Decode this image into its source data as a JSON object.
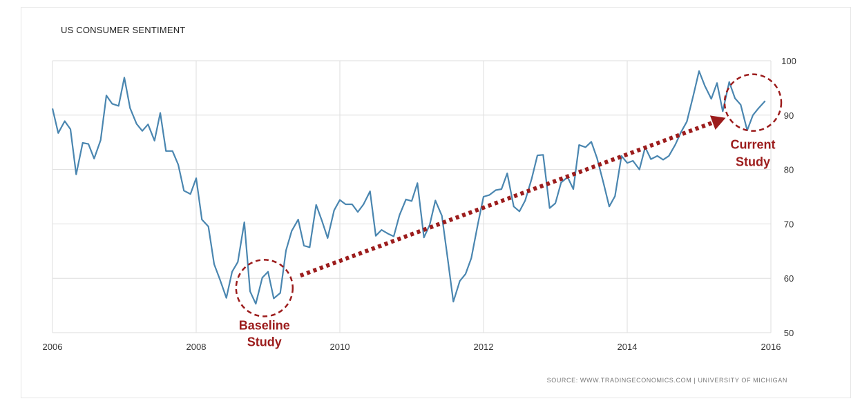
{
  "colors": {
    "line": "#4a86b0",
    "grid": "#dedede",
    "annotation": "#9c1c1c"
  },
  "chart_data": {
    "type": "line",
    "title": "US CONSUMER SENTIMENT",
    "source": "SOURCE: WWW.TRADINGECONOMICS.COM | UNIVERSITY OF MICHIGAN",
    "xlim": [
      2006,
      2016
    ],
    "ylim": [
      50,
      100
    ],
    "x_ticks": [
      2006,
      2008,
      2010,
      2012,
      2014,
      2016
    ],
    "y_ticks": [
      50,
      60,
      70,
      80,
      90,
      100
    ],
    "y_axis_side": "right",
    "grid": true,
    "series": [
      {
        "x": [
          2006.0,
          2006.08,
          2006.17,
          2006.25,
          2006.33,
          2006.42,
          2006.5,
          2006.58,
          2006.67,
          2006.75,
          2006.83,
          2006.92,
          2007.0,
          2007.08,
          2007.17,
          2007.25,
          2007.33,
          2007.42,
          2007.5,
          2007.58,
          2007.67,
          2007.75,
          2007.83,
          2007.92,
          2008.0,
          2008.08,
          2008.17,
          2008.25,
          2008.33,
          2008.42,
          2008.5,
          2008.58,
          2008.67,
          2008.75,
          2008.83,
          2008.92,
          2009.0,
          2009.08,
          2009.17,
          2009.25,
          2009.33,
          2009.42,
          2009.5,
          2009.58,
          2009.67,
          2009.75,
          2009.83,
          2009.92,
          2010.0,
          2010.08,
          2010.17,
          2010.25,
          2010.33,
          2010.42,
          2010.5,
          2010.58,
          2010.67,
          2010.75,
          2010.83,
          2010.92,
          2011.0,
          2011.08,
          2011.17,
          2011.25,
          2011.33,
          2011.42,
          2011.5,
          2011.58,
          2011.67,
          2011.75,
          2011.83,
          2011.92,
          2012.0,
          2012.08,
          2012.17,
          2012.25,
          2012.33,
          2012.42,
          2012.5,
          2012.58,
          2012.67,
          2012.75,
          2012.83,
          2012.92,
          2013.0,
          2013.08,
          2013.17,
          2013.25,
          2013.33,
          2013.42,
          2013.5,
          2013.58,
          2013.67,
          2013.75,
          2013.83,
          2013.92,
          2014.0,
          2014.08,
          2014.17,
          2014.25,
          2014.33,
          2014.42,
          2014.5,
          2014.58,
          2014.67,
          2014.75,
          2014.83,
          2014.92,
          2015.0,
          2015.08,
          2015.17,
          2015.25,
          2015.33,
          2015.42,
          2015.5,
          2015.58,
          2015.67,
          2015.75,
          2015.83,
          2015.92
        ],
        "y": [
          91.2,
          86.7,
          88.9,
          87.4,
          79.1,
          84.9,
          84.7,
          82.0,
          85.4,
          93.6,
          92.1,
          91.7,
          96.9,
          91.3,
          88.4,
          87.1,
          88.3,
          85.3,
          90.4,
          83.4,
          83.4,
          80.9,
          76.1,
          75.5,
          78.4,
          70.8,
          69.5,
          62.6,
          59.8,
          56.4,
          61.2,
          63.0,
          70.3,
          57.6,
          55.3,
          60.1,
          61.2,
          56.3,
          57.3,
          65.1,
          68.7,
          70.8,
          66.0,
          65.7,
          73.5,
          70.6,
          67.4,
          72.5,
          74.4,
          73.6,
          73.6,
          72.2,
          73.6,
          76.0,
          67.8,
          68.9,
          68.2,
          67.7,
          71.6,
          74.5,
          74.2,
          77.5,
          67.5,
          69.8,
          74.3,
          71.5,
          63.7,
          55.7,
          59.5,
          60.8,
          63.7,
          69.9,
          75.0,
          75.3,
          76.2,
          76.4,
          79.3,
          73.2,
          72.3,
          74.3,
          78.3,
          82.6,
          82.7,
          72.9,
          73.8,
          77.6,
          78.6,
          76.4,
          84.5,
          84.1,
          85.1,
          82.1,
          77.5,
          73.2,
          75.1,
          82.5,
          81.2,
          81.6,
          80.0,
          84.1,
          81.9,
          82.5,
          81.8,
          82.5,
          84.6,
          86.9,
          88.8,
          93.6,
          98.1,
          95.4,
          93.0,
          95.9,
          90.7,
          96.1,
          93.1,
          91.9,
          87.2,
          90.0,
          91.3,
          92.6
        ]
      }
    ],
    "annotations": [
      {
        "text_line1": "Baseline",
        "text_line2": "Study",
        "x": 2008.95,
        "y": 58.2
      },
      {
        "text_line1": "Current",
        "text_line2": "Study",
        "x": 2015.75,
        "y": 92.3
      }
    ],
    "arrow": {
      "from_x": 2009.45,
      "from_y": 60.5,
      "to_x": 2015.37,
      "to_y": 89.5
    }
  }
}
